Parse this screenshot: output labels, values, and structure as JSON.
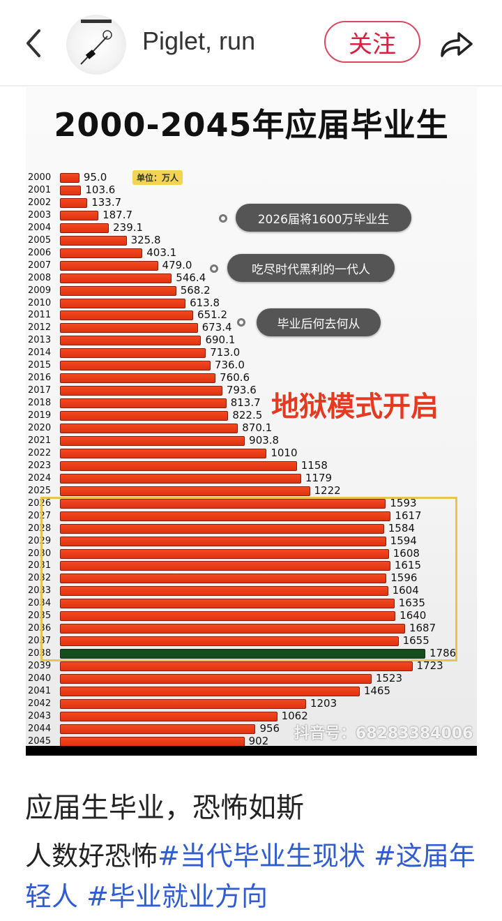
{
  "header": {
    "back_icon": "chevron-left-icon",
    "username": "Piglet, run",
    "follow_label": "关注",
    "share_icon": "share-arrow-icon",
    "accent_color": "#d8203f"
  },
  "post_image": {
    "title": "2000-2045年应届毕业生",
    "unit_label": "单位：万人",
    "bubbles": [
      "2026届将1600万毕业生",
      "吃尽时代黑利的一代人",
      "毕业后何去何从"
    ],
    "headline": "地狱模式开启",
    "watermark": "抖音号：68283384006"
  },
  "chart_data": {
    "type": "bar",
    "orientation": "horizontal",
    "title": "2000-2045年应届毕业生",
    "unit": "单位：万人",
    "categories": [
      "2000",
      "2001",
      "2002",
      "2003",
      "2004",
      "2005",
      "2006",
      "2007",
      "2008",
      "2009",
      "2010",
      "2011",
      "2012",
      "2013",
      "2014",
      "2015",
      "2016",
      "2017",
      "2018",
      "2019",
      "2020",
      "2021",
      "2022",
      "2023",
      "2024",
      "2025",
      "2026",
      "2027",
      "2028",
      "2029",
      "2030",
      "2031",
      "2032",
      "2033",
      "2034",
      "2035",
      "2036",
      "2037",
      "2038",
      "2039",
      "2040",
      "2041",
      "2042",
      "2043",
      "2044",
      "2045"
    ],
    "values": [
      95.0,
      103.6,
      133.7,
      187.7,
      239.1,
      325.8,
      403.1,
      479.0,
      546.4,
      568.2,
      613.8,
      651.2,
      673.4,
      690.1,
      713.0,
      736.0,
      760.6,
      793.6,
      813.7,
      822.5,
      870.1,
      903.8,
      1010,
      1158,
      1179,
      1222,
      1593,
      1617,
      1584,
      1594,
      1608,
      1615,
      1596,
      1604,
      1635,
      1640,
      1687,
      1655,
      1786,
      1723,
      1523,
      1465,
      1203,
      1062,
      956,
      902
    ],
    "labels": [
      "95.0",
      "103.6",
      "133.7",
      "187.7",
      "239.1",
      "325.8",
      "403.1",
      "479.0",
      "546.4",
      "568.2",
      "613.8",
      "651.2",
      "673.4",
      "690.1",
      "713.0",
      "736.0",
      "760.6",
      "793.6",
      "813.7",
      "822.5",
      "870.1",
      "903.8",
      "1010",
      "1158",
      "1179",
      "1222",
      "1593",
      "1617",
      "1584",
      "1594",
      "1608",
      "1615",
      "1596",
      "1604",
      "1635",
      "1640",
      "1687",
      "1655",
      "1786",
      "1723",
      "1523",
      "1465",
      "1203",
      "1062",
      "956",
      "902"
    ],
    "highlight_category": "2038",
    "highlight_range": [
      "2026",
      "2038"
    ],
    "bar_color": "#e8391a",
    "highlight_color": "#174d1c",
    "box_color": "#e9c44a",
    "grid": false
  },
  "post": {
    "caption": "应届生毕业，恐怖如斯",
    "text": "人数好恐怖",
    "hashtags": [
      "#当代毕业生现状",
      "#这届年轻人",
      "#毕业就业方向"
    ],
    "hashtag_color": "#2f5bd3"
  }
}
